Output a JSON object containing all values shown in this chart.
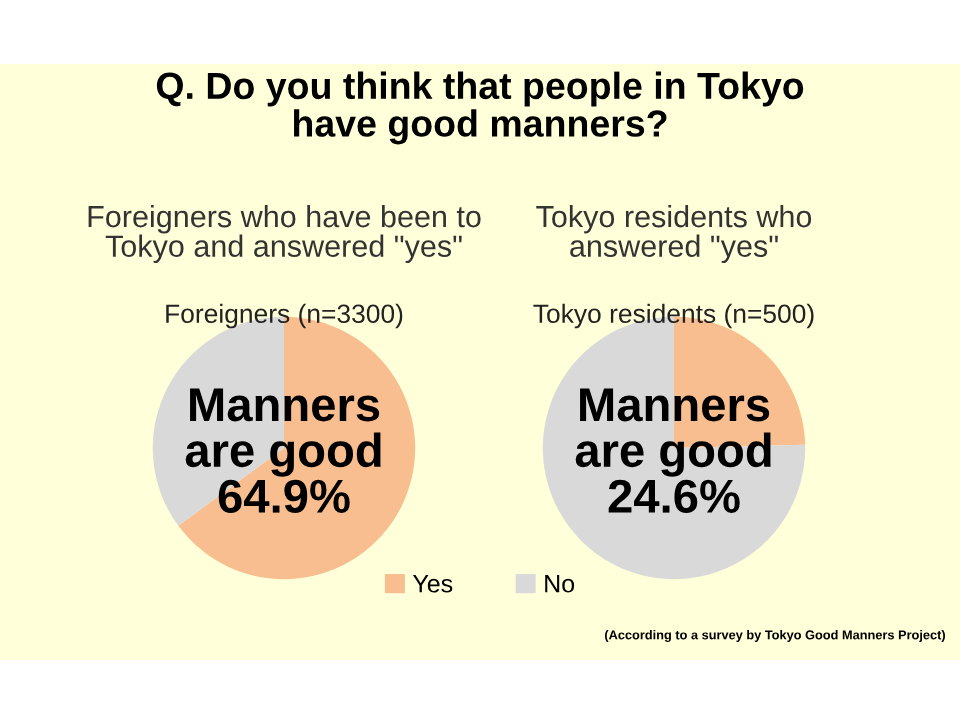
{
  "chart_data": [
    {
      "type": "pie",
      "title": "Q. Do you think that people in Tokyo\nhave good manners?",
      "subtitle": "Foreigners who have been to\nTokyo and answered \"yes\"",
      "categories": [
        "Yes",
        "No"
      ],
      "values": [
        64.9,
        35.1
      ],
      "colors": [
        "#f9be8f",
        "#d9d9d9"
      ],
      "annotations": [
        "Foreigners (n=3300)",
        "Manners\nare good\n64.9%"
      ],
      "legend": "bottom right"
    },
    {
      "type": "pie",
      "subtitle": "Tokyo residents who\nanswered \"yes\"",
      "categories": [
        null,
        null
      ],
      "values": [
        24.6,
        75.4
      ],
      "colors": [
        "#f9be8f",
        "#d9d9d9"
      ],
      "annotations": [
        "Tokyo residents (n=500)",
        "Manners\nare good\n24.6%",
        "(According to a survey by Tokyo Good Manners Project)"
      ]
    }
  ]
}
